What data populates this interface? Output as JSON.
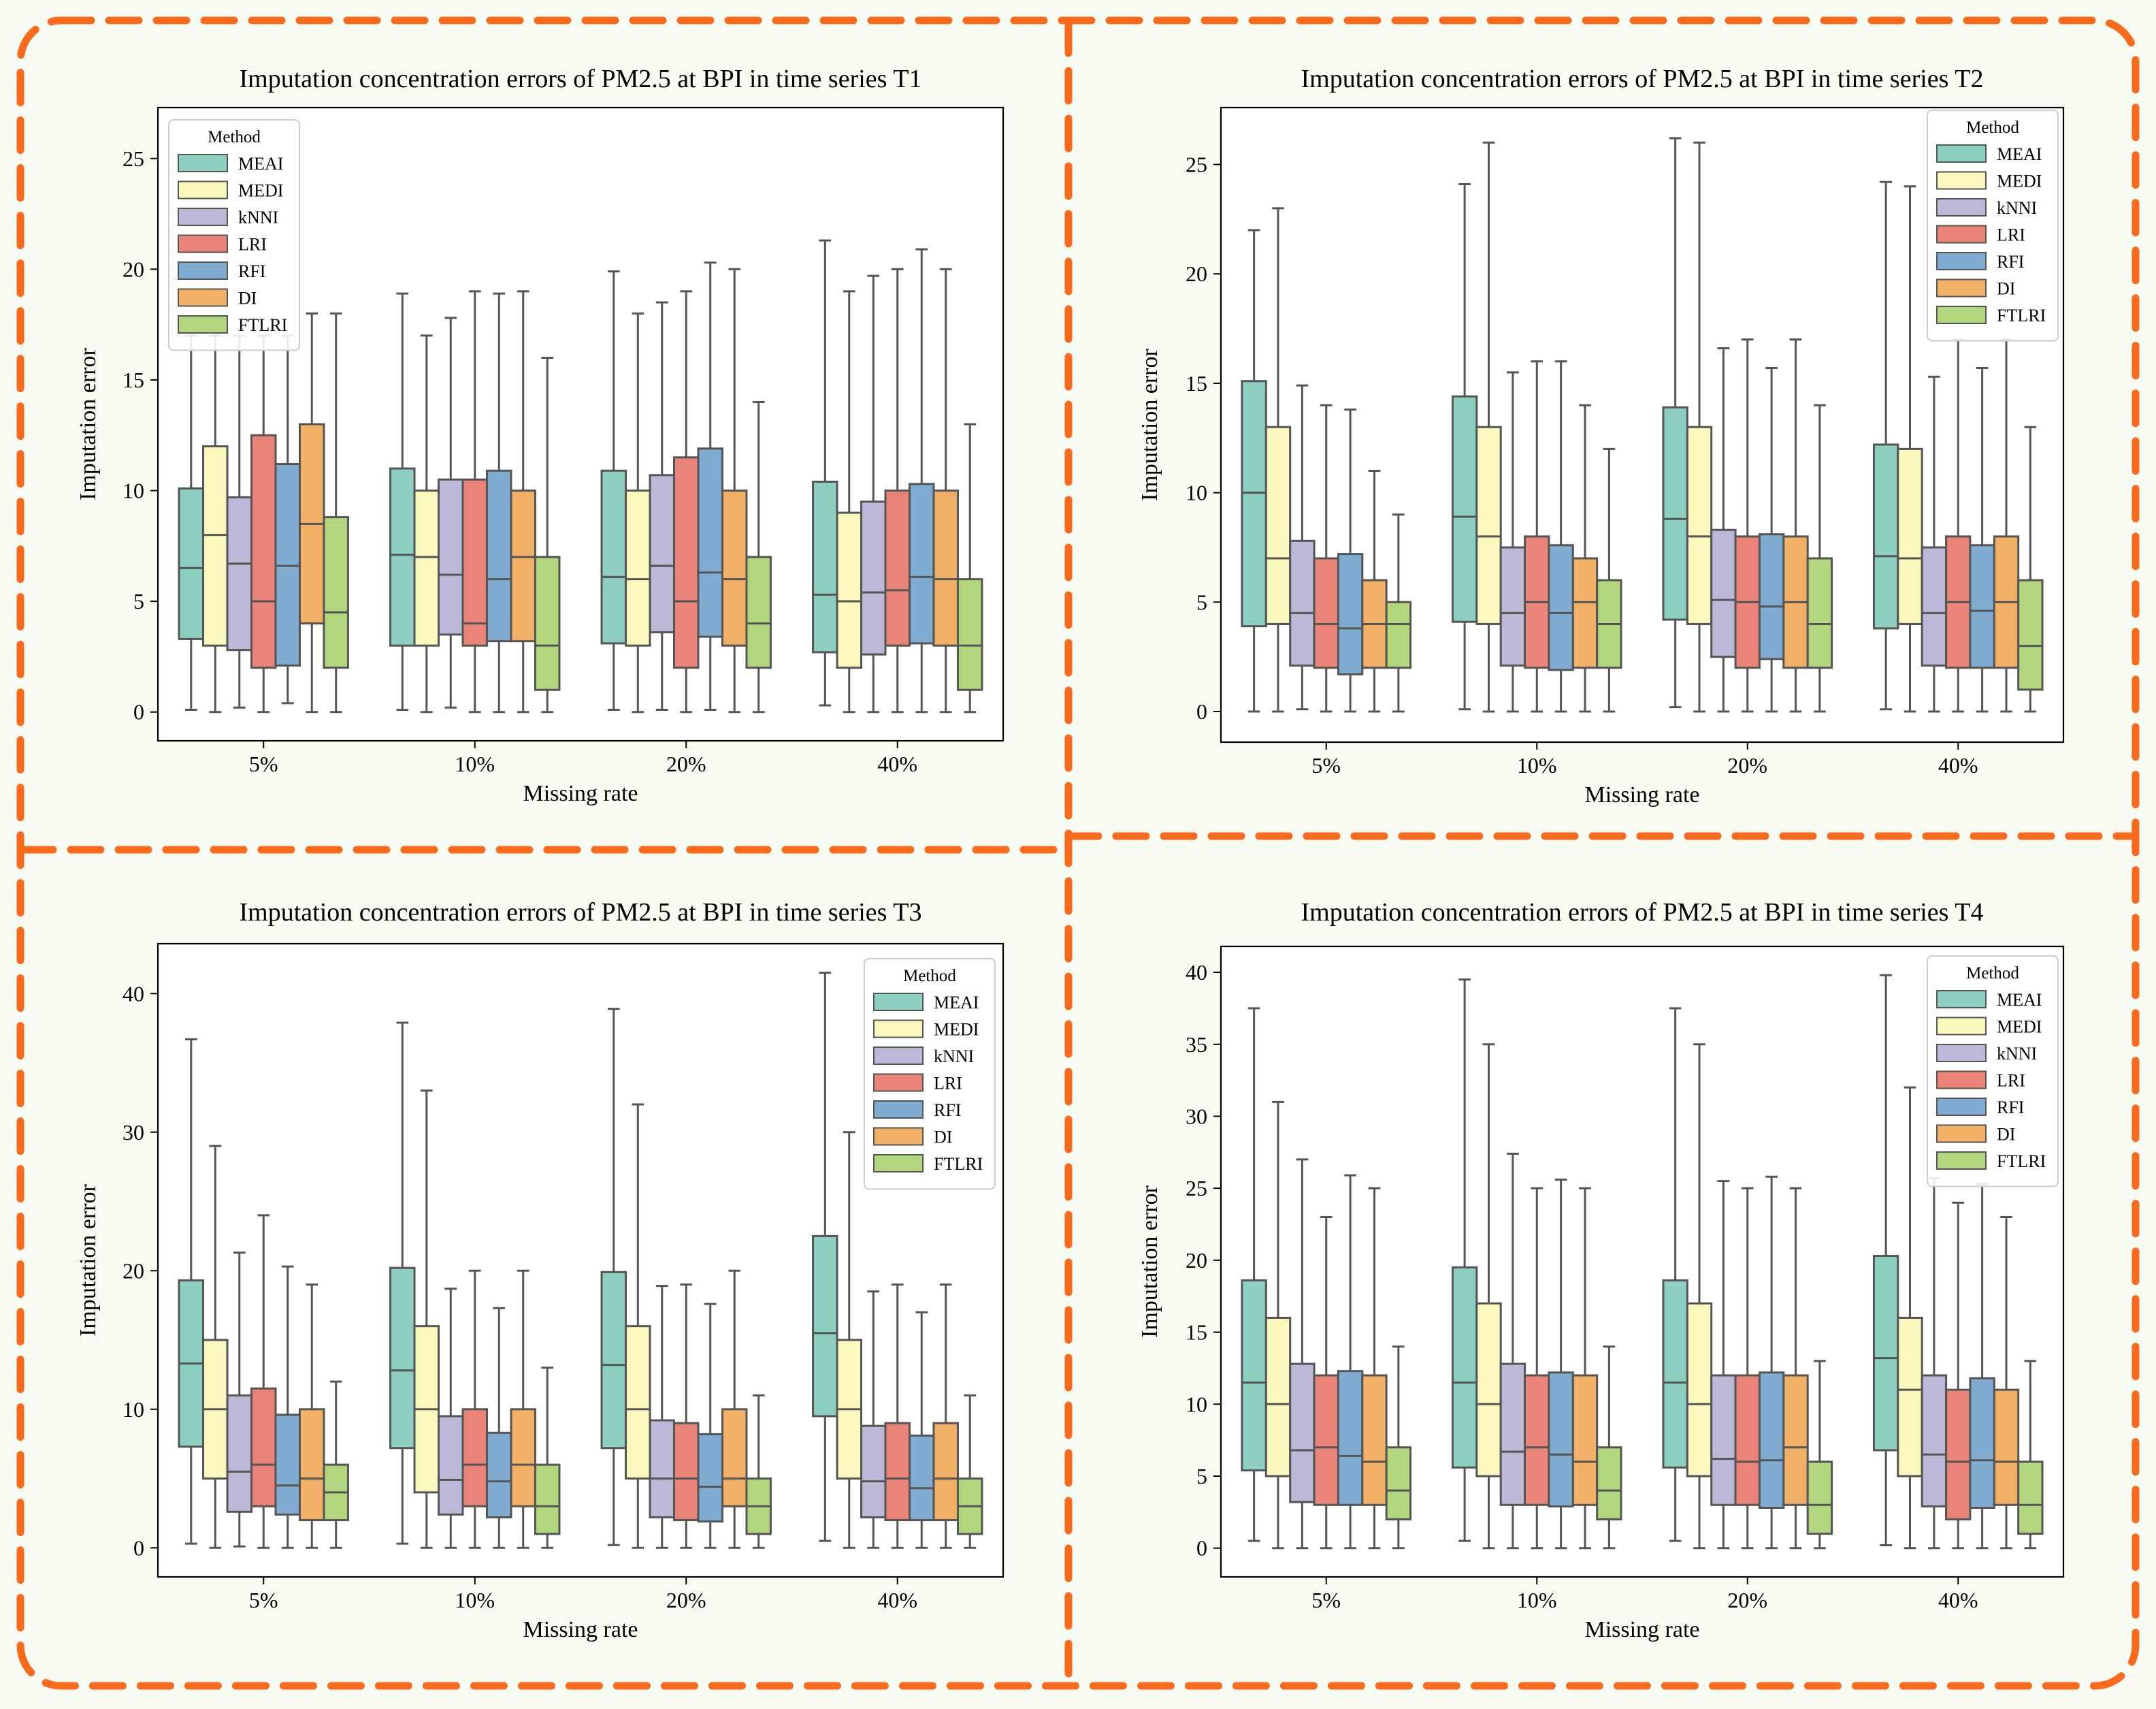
{
  "colors": {
    "background": "#f8fbf2",
    "frame": "#f96a1c",
    "box_edge": "#555555",
    "series": [
      "#8dcfc1",
      "#fbf8bd",
      "#bcb8d7",
      "#ea8478",
      "#7facd0",
      "#f2b066",
      "#b1d67d"
    ]
  },
  "chart_data": [
    {
      "type": "box",
      "title": "Imputation concentration errors of PM2.5 at BPI in time series T1",
      "xlabel": "Missing rate",
      "ylabel": "Imputation error",
      "categories": [
        "5%",
        "10%",
        "20%",
        "40%"
      ],
      "yticks": [
        0,
        5,
        10,
        15,
        20,
        25
      ],
      "ylim": [
        -1.3,
        27.3
      ],
      "legend_title": "Method",
      "legend_position": "top-left",
      "series": [
        {
          "name": "MEAI",
          "boxes": [
            [
              0.1,
              3.3,
              6.5,
              10.1,
              17
            ],
            [
              0.1,
              3.0,
              7.1,
              11.0,
              18.9
            ],
            [
              0.1,
              3.1,
              6.1,
              10.9,
              19.9
            ],
            [
              0.3,
              2.7,
              5.3,
              10.4,
              21.3
            ]
          ]
        },
        {
          "name": "MEDI",
          "boxes": [
            [
              0,
              3.0,
              8.0,
              12.0,
              17
            ],
            [
              0,
              3.0,
              7.0,
              10.0,
              17.0
            ],
            [
              0,
              3.0,
              6.0,
              10.0,
              18.0
            ],
            [
              0,
              2.0,
              5.0,
              9.0,
              19.0
            ]
          ]
        },
        {
          "name": "kNNI",
          "boxes": [
            [
              0.2,
              2.8,
              6.7,
              9.7,
              17
            ],
            [
              0.2,
              3.5,
              6.2,
              10.5,
              17.8
            ],
            [
              0.1,
              3.6,
              6.6,
              10.7,
              18.5
            ],
            [
              0,
              2.6,
              5.4,
              9.5,
              19.7
            ]
          ]
        },
        {
          "name": "LRI",
          "boxes": [
            [
              0,
              2.0,
              5.0,
              12.5,
              17
            ],
            [
              0,
              3.0,
              4.0,
              10.5,
              19.0
            ],
            [
              0,
              2.0,
              5.0,
              11.5,
              19.0
            ],
            [
              0,
              3.0,
              5.5,
              10.0,
              20.0
            ]
          ]
        },
        {
          "name": "RFI",
          "boxes": [
            [
              0.4,
              2.1,
              6.6,
              11.2,
              17
            ],
            [
              0,
              3.2,
              6.0,
              10.9,
              18.9
            ],
            [
              0.1,
              3.4,
              6.3,
              11.9,
              20.3
            ],
            [
              0,
              3.1,
              6.1,
              10.3,
              20.9
            ]
          ]
        },
        {
          "name": "DI",
          "boxes": [
            [
              0,
              4.0,
              8.5,
              13.0,
              18.0
            ],
            [
              0,
              3.2,
              7.0,
              10.0,
              19.0
            ],
            [
              0,
              3.0,
              6.0,
              10.0,
              20.0
            ],
            [
              0,
              3.0,
              6.0,
              10.0,
              20.0
            ]
          ]
        },
        {
          "name": "FTLRI",
          "boxes": [
            [
              0,
              2.0,
              4.5,
              8.8,
              18.0
            ],
            [
              0,
              1.0,
              3.0,
              7.0,
              16.0
            ],
            [
              0,
              2.0,
              4.0,
              7.0,
              14.0
            ],
            [
              0,
              1.0,
              3.0,
              6.0,
              13.0
            ]
          ]
        }
      ]
    },
    {
      "type": "box",
      "title": "Imputation concentration errors of PM2.5 at BPI in time series T2",
      "xlabel": "Missing rate",
      "ylabel": "Imputation error",
      "categories": [
        "5%",
        "10%",
        "20%",
        "40%"
      ],
      "yticks": [
        0,
        5,
        10,
        15,
        20,
        25
      ],
      "ylim": [
        -1.4,
        27.6
      ],
      "legend_title": "Method",
      "legend_position": "top-right",
      "series": [
        {
          "name": "MEAI",
          "boxes": [
            [
              0,
              3.9,
              10.0,
              15.1,
              22.0
            ],
            [
              0.1,
              4.1,
              8.9,
              14.4,
              24.1
            ],
            [
              0.2,
              4.2,
              8.8,
              13.9,
              26.2
            ],
            [
              0.1,
              3.8,
              7.1,
              12.2,
              24.2
            ]
          ]
        },
        {
          "name": "MEDI",
          "boxes": [
            [
              0,
              4.0,
              7.0,
              13.0,
              23.0
            ],
            [
              0,
              4.0,
              8.0,
              13.0,
              26.0
            ],
            [
              0,
              4.0,
              8.0,
              13.0,
              26.0
            ],
            [
              0,
              4.0,
              7.0,
              12.0,
              24.0
            ]
          ]
        },
        {
          "name": "kNNI",
          "boxes": [
            [
              0.1,
              2.1,
              4.5,
              7.8,
              14.9
            ],
            [
              0,
              2.1,
              4.5,
              7.5,
              15.5
            ],
            [
              0,
              2.5,
              5.1,
              8.3,
              16.6
            ],
            [
              0,
              2.1,
              4.5,
              7.5,
              15.3
            ]
          ]
        },
        {
          "name": "LRI",
          "boxes": [
            [
              0,
              2.0,
              4.0,
              7.0,
              14.0
            ],
            [
              0,
              2.0,
              5.0,
              8.0,
              16.0
            ],
            [
              0,
              2.0,
              5.0,
              8.0,
              17.0
            ],
            [
              0,
              2.0,
              5.0,
              8.0,
              17.0
            ]
          ]
        },
        {
          "name": "RFI",
          "boxes": [
            [
              0,
              1.7,
              3.8,
              7.2,
              13.8
            ],
            [
              0,
              1.9,
              4.5,
              7.6,
              16.0
            ],
            [
              0,
              2.4,
              4.8,
              8.1,
              15.7
            ],
            [
              0,
              2.0,
              4.6,
              7.6,
              15.7
            ]
          ]
        },
        {
          "name": "DI",
          "boxes": [
            [
              0,
              2.0,
              4.0,
              6.0,
              11.0
            ],
            [
              0,
              2.0,
              5.0,
              7.0,
              14.0
            ],
            [
              0,
              2.0,
              5.0,
              8.0,
              17.0
            ],
            [
              0,
              2.0,
              5.0,
              8.0,
              17.0
            ]
          ]
        },
        {
          "name": "FTLRI",
          "boxes": [
            [
              0,
              2.0,
              4.0,
              5.0,
              9.0
            ],
            [
              0,
              2.0,
              4.0,
              6.0,
              12.0
            ],
            [
              0,
              2.0,
              4.0,
              7.0,
              14.0
            ],
            [
              0,
              1.0,
              3.0,
              6.0,
              13.0
            ]
          ]
        }
      ]
    },
    {
      "type": "box",
      "title": "Imputation concentration errors of PM2.5 at BPI in time series T3",
      "xlabel": "Missing rate",
      "ylabel": "Imputation error",
      "categories": [
        "5%",
        "10%",
        "20%",
        "40%"
      ],
      "yticks": [
        0,
        10,
        20,
        30,
        40
      ],
      "ylim": [
        -2.1,
        43.6
      ],
      "legend_title": "Method",
      "legend_position": "top-right",
      "series": [
        {
          "name": "MEAI",
          "boxes": [
            [
              0.3,
              7.3,
              13.3,
              19.3,
              36.7
            ],
            [
              0.3,
              7.2,
              12.8,
              20.2,
              37.9
            ],
            [
              0.2,
              7.2,
              13.2,
              19.9,
              38.9
            ],
            [
              0.5,
              9.5,
              15.5,
              22.5,
              41.5
            ]
          ]
        },
        {
          "name": "MEDI",
          "boxes": [
            [
              0,
              5.0,
              10.0,
              15.0,
              29.0
            ],
            [
              0,
              4.0,
              10.0,
              16.0,
              33.0
            ],
            [
              0,
              5.0,
              10.0,
              16.0,
              32.0
            ],
            [
              0,
              5.0,
              10.0,
              15.0,
              30.0
            ]
          ]
        },
        {
          "name": "kNNI",
          "boxes": [
            [
              0.1,
              2.6,
              5.5,
              11.0,
              21.3
            ],
            [
              0,
              2.4,
              4.9,
              9.5,
              18.7
            ],
            [
              0,
              2.2,
              5.0,
              9.2,
              18.9
            ],
            [
              0,
              2.2,
              4.8,
              8.8,
              18.5
            ]
          ]
        },
        {
          "name": "LRI",
          "boxes": [
            [
              0,
              3.0,
              6.0,
              11.5,
              24.0
            ],
            [
              0,
              3.0,
              6.0,
              10.0,
              20.0
            ],
            [
              0,
              2.0,
              5.0,
              9.0,
              19.0
            ],
            [
              0,
              2.0,
              5.0,
              9.0,
              19.0
            ]
          ]
        },
        {
          "name": "RFI",
          "boxes": [
            [
              0,
              2.4,
              4.5,
              9.6,
              20.3
            ],
            [
              0,
              2.2,
              4.8,
              8.3,
              17.3
            ],
            [
              0,
              1.9,
              4.4,
              8.2,
              17.6
            ],
            [
              0,
              2.0,
              4.3,
              8.1,
              17.0
            ]
          ]
        },
        {
          "name": "DI",
          "boxes": [
            [
              0,
              2.0,
              5.0,
              10.0,
              19.0
            ],
            [
              0,
              3.0,
              6.0,
              10.0,
              20.0
            ],
            [
              0,
              3.0,
              5.0,
              10.0,
              20.0
            ],
            [
              0,
              2.0,
              5.0,
              9.0,
              19.0
            ]
          ]
        },
        {
          "name": "FTLRI",
          "boxes": [
            [
              0,
              2.0,
              4.0,
              6.0,
              12.0
            ],
            [
              0,
              1.0,
              3.0,
              6.0,
              13.0
            ],
            [
              0,
              1.0,
              3.0,
              5.0,
              11.0
            ],
            [
              0,
              1.0,
              3.0,
              5.0,
              11.0
            ]
          ]
        }
      ]
    },
    {
      "type": "box",
      "title": "Imputation concentration errors of PM2.5 at BPI in time series T4",
      "xlabel": "Missing rate",
      "ylabel": "Imputation error",
      "categories": [
        "5%",
        "10%",
        "20%",
        "40%"
      ],
      "yticks": [
        0,
        5,
        10,
        15,
        20,
        25,
        30,
        35,
        40
      ],
      "ylim": [
        -2.0,
        41.8
      ],
      "legend_title": "Method",
      "legend_position": "top-right",
      "series": [
        {
          "name": "MEAI",
          "boxes": [
            [
              0.5,
              5.4,
              11.5,
              18.6,
              37.5
            ],
            [
              0.5,
              5.6,
              11.5,
              19.5,
              39.5
            ],
            [
              0.5,
              5.6,
              11.5,
              18.6,
              37.5
            ],
            [
              0.2,
              6.8,
              13.2,
              20.3,
              39.8
            ]
          ]
        },
        {
          "name": "MEDI",
          "boxes": [
            [
              0,
              5.0,
              10.0,
              16.0,
              31.0
            ],
            [
              0,
              5.0,
              10.0,
              17.0,
              35.0
            ],
            [
              0,
              5.0,
              10.0,
              17.0,
              35.0
            ],
            [
              0,
              5.0,
              11.0,
              16.0,
              32.0
            ]
          ]
        },
        {
          "name": "kNNI",
          "boxes": [
            [
              0,
              3.2,
              6.8,
              12.8,
              27.0
            ],
            [
              0,
              3.0,
              6.7,
              12.8,
              27.4
            ],
            [
              0,
              3.0,
              6.2,
              12.0,
              25.5
            ],
            [
              0,
              2.9,
              6.5,
              12.0,
              25.7
            ]
          ]
        },
        {
          "name": "LRI",
          "boxes": [
            [
              0,
              3.0,
              7.0,
              12.0,
              23.0
            ],
            [
              0,
              3.0,
              7.0,
              12.0,
              25.0
            ],
            [
              0,
              3.0,
              6.0,
              12.0,
              25.0
            ],
            [
              0,
              2.0,
              6.0,
              11.0,
              24.0
            ]
          ]
        },
        {
          "name": "RFI",
          "boxes": [
            [
              0,
              3.0,
              6.4,
              12.3,
              25.9
            ],
            [
              0,
              2.9,
              6.5,
              12.2,
              25.6
            ],
            [
              0,
              2.8,
              6.1,
              12.2,
              25.8
            ],
            [
              0,
              2.8,
              6.1,
              11.8,
              25.3
            ]
          ]
        },
        {
          "name": "DI",
          "boxes": [
            [
              0,
              3.0,
              6.0,
              12.0,
              25.0
            ],
            [
              0,
              3.0,
              6.0,
              12.0,
              25.0
            ],
            [
              0,
              3.0,
              7.0,
              12.0,
              25.0
            ],
            [
              0,
              3.0,
              6.0,
              11.0,
              23.0
            ]
          ]
        },
        {
          "name": "FTLRI",
          "boxes": [
            [
              0,
              2.0,
              4.0,
              7.0,
              14.0
            ],
            [
              0,
              2.0,
              4.0,
              7.0,
              14.0
            ],
            [
              0,
              1.0,
              3.0,
              6.0,
              13.0
            ],
            [
              0,
              1.0,
              3.0,
              6.0,
              13.0
            ]
          ]
        }
      ]
    }
  ]
}
